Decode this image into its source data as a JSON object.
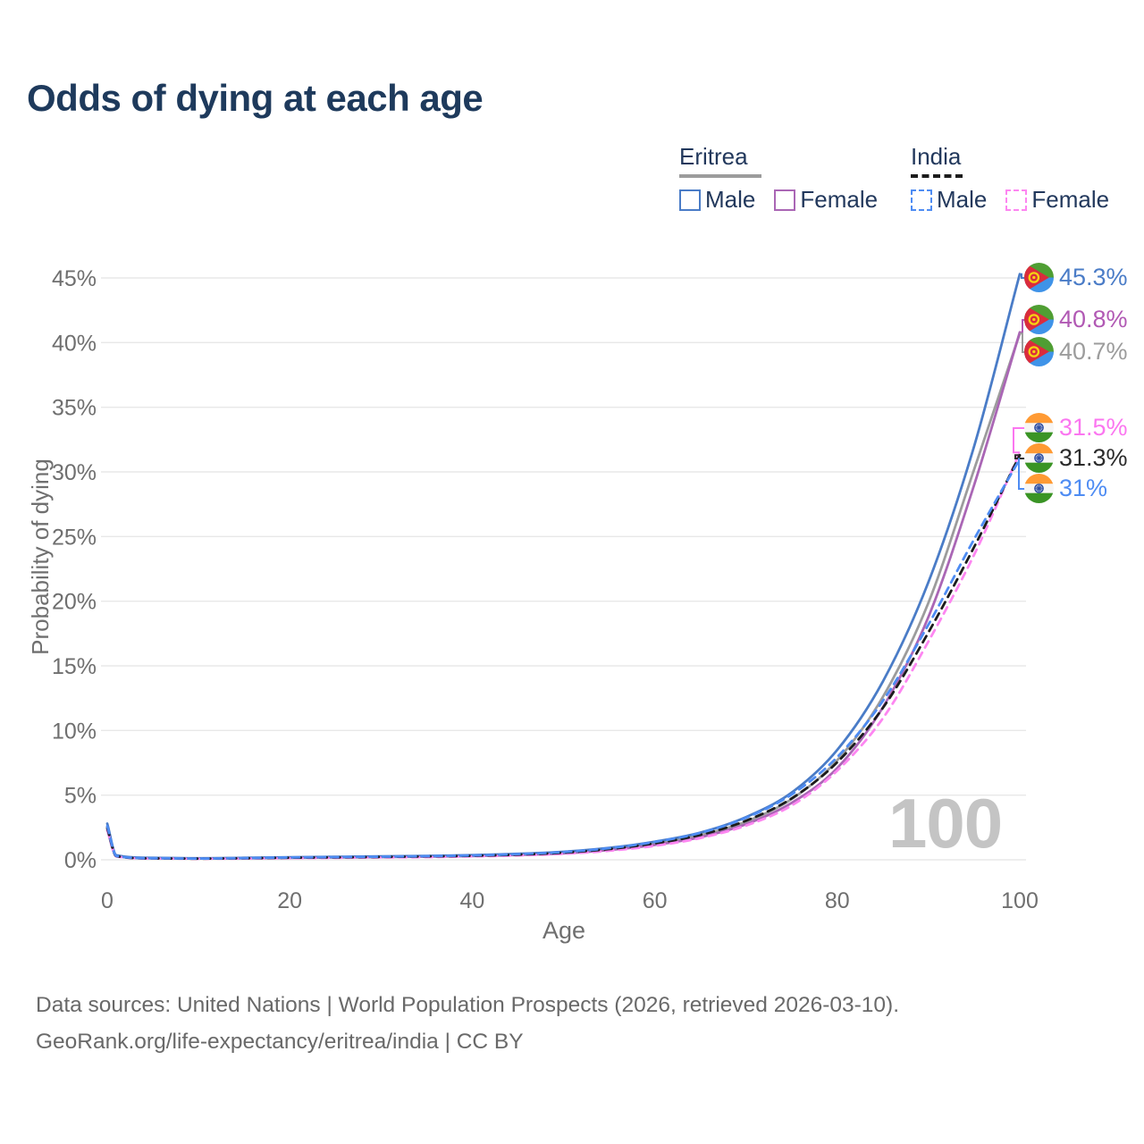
{
  "title": "Odds of dying at each age",
  "legend": {
    "eritrea": {
      "label": "Eritrea",
      "male": "Male",
      "female": "Female",
      "line_color": "#9c9c9c",
      "line_style": "solid"
    },
    "india": {
      "label": "India",
      "male": "Male",
      "female": "Female",
      "line_color": "#1c1c1c",
      "line_style": "dashed"
    }
  },
  "chart_data": {
    "type": "line",
    "title": "Odds of dying at each age",
    "xlabel": "Age",
    "ylabel": "Probability of dying",
    "xlim": [
      0,
      100
    ],
    "ylim": [
      0,
      47
    ],
    "grid": "horizontal",
    "legend_position": "top-right",
    "watermark": "100",
    "x": [
      0,
      1,
      5,
      10,
      15,
      20,
      25,
      30,
      35,
      40,
      45,
      50,
      55,
      60,
      65,
      70,
      75,
      80,
      85,
      90,
      95,
      100
    ],
    "xticks": [
      0,
      20,
      40,
      60,
      80,
      100
    ],
    "yticks": [
      "0%",
      "5%",
      "10%",
      "15%",
      "20%",
      "25%",
      "30%",
      "35%",
      "40%",
      "45%"
    ],
    "unit": "%",
    "series": [
      {
        "name": "Eritrea Both sexes",
        "color": "#9c9c9c",
        "style": "solid",
        "end_label": "40.7%",
        "values": [
          2.55,
          0.32,
          0.13,
          0.11,
          0.13,
          0.17,
          0.2,
          0.23,
          0.27,
          0.32,
          0.41,
          0.55,
          0.82,
          1.25,
          1.9,
          2.95,
          4.7,
          7.7,
          12.6,
          19.9,
          30.2,
          40.7
        ]
      },
      {
        "name": "Eritrea Female",
        "color": "#aa66b5",
        "style": "solid",
        "end_label": "40.8%",
        "values": [
          2.3,
          0.3,
          0.12,
          0.1,
          0.12,
          0.15,
          0.18,
          0.21,
          0.24,
          0.29,
          0.37,
          0.5,
          0.75,
          1.15,
          1.75,
          2.75,
          4.4,
          7.1,
          11.8,
          18.8,
          29.0,
          40.8
        ]
      },
      {
        "name": "Eritrea Male",
        "color": "#4a7cc7",
        "style": "solid",
        "end_label": "45.3%",
        "values": [
          2.8,
          0.35,
          0.15,
          0.12,
          0.15,
          0.2,
          0.23,
          0.26,
          0.3,
          0.36,
          0.46,
          0.62,
          0.92,
          1.4,
          2.1,
          3.3,
          5.2,
          8.5,
          13.8,
          21.5,
          32.0,
          45.3
        ]
      },
      {
        "name": "India Female",
        "color": "#fd86f1",
        "style": "dashed",
        "end_label": "31.5%",
        "values": [
          2.3,
          0.26,
          0.1,
          0.08,
          0.1,
          0.13,
          0.15,
          0.18,
          0.21,
          0.26,
          0.34,
          0.46,
          0.7,
          1.08,
          1.68,
          2.65,
          4.2,
          6.9,
          10.95,
          16.9,
          23.6,
          31.5
        ]
      },
      {
        "name": "India Both sexes",
        "color": "#1c1c1c",
        "style": "dashed",
        "end_label": "31.3%",
        "values": [
          2.45,
          0.28,
          0.11,
          0.09,
          0.12,
          0.16,
          0.19,
          0.22,
          0.26,
          0.31,
          0.4,
          0.55,
          0.83,
          1.27,
          1.93,
          3.02,
          4.75,
          7.55,
          11.75,
          17.6,
          24.2,
          31.3
        ]
      },
      {
        "name": "India Male",
        "color": "#4e8cf3",
        "style": "dashed",
        "end_label": "31%",
        "values": [
          2.6,
          0.3,
          0.12,
          0.1,
          0.13,
          0.18,
          0.21,
          0.24,
          0.28,
          0.34,
          0.44,
          0.6,
          0.9,
          1.38,
          2.08,
          3.25,
          5.05,
          7.95,
          12.3,
          18.2,
          24.8,
          31.0
        ]
      }
    ]
  },
  "annotations": [
    {
      "series": "Eritrea Male",
      "flag": "eritrea",
      "value": "45.3%",
      "pct": 45.3,
      "color": "#4a7cc7"
    },
    {
      "series": "Eritrea Female",
      "flag": "eritrea",
      "value": "40.8%",
      "pct": 40.8,
      "color": "#b159b4"
    },
    {
      "series": "Eritrea Both sexes",
      "flag": "eritrea",
      "value": "40.7%",
      "pct": 40.7,
      "color": "#9c9c9c"
    },
    {
      "series": "India Female",
      "flag": "india",
      "value": "31.5%",
      "pct": 31.5,
      "color": "#fb76f0"
    },
    {
      "series": "India Both sexes",
      "flag": "india",
      "value": "31.3%",
      "pct": 31.3,
      "color": "#2b2b2b"
    },
    {
      "series": "India Male",
      "flag": "india",
      "value": "31%",
      "pct": 31.0,
      "color": "#4e8cf3"
    }
  ],
  "footer": {
    "line1": "Data sources: United Nations | World Population Prospects (2026, retrieved 2026-03-10).",
    "line2": "GeoRank.org/life-expectancy/eritrea/india | CC BY"
  }
}
